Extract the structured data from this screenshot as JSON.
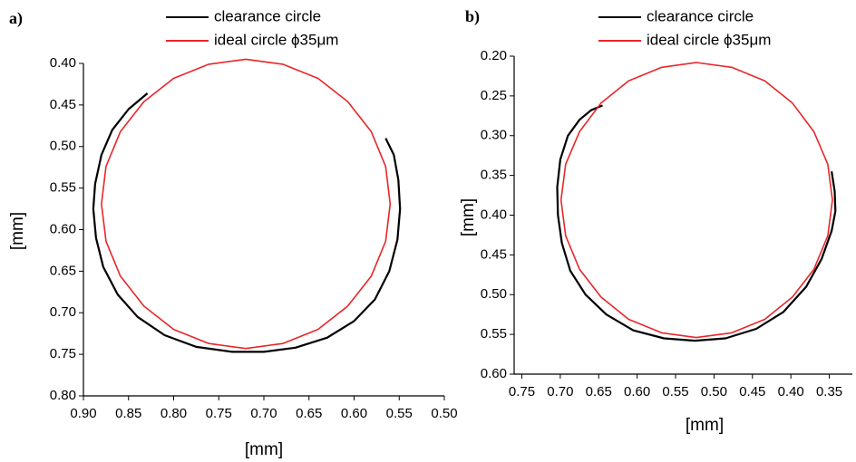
{
  "chart_data": [
    {
      "type": "line",
      "title": "a)",
      "xlabel": "[mm]",
      "ylabel": "[mm]",
      "xlim": [
        0.9,
        0.5
      ],
      "ylim": [
        0.4,
        0.8
      ],
      "xticks": [
        {
          "value": 0.9,
          "label": "0.90"
        },
        0.85,
        {
          "value": 0.8,
          "label": "0.80"
        },
        0.75,
        {
          "value": 0.7,
          "label": "0.70"
        },
        0.65,
        {
          "value": 0.6,
          "label": "0.60"
        },
        0.55,
        {
          "value": 0.5,
          "label": "0.50"
        }
      ],
      "yticks": [
        {
          "value": 0.4,
          "label": "0.40"
        },
        0.45,
        {
          "value": 0.5,
          "label": "0.50"
        },
        0.55,
        {
          "value": 0.6,
          "label": "0.60"
        },
        0.65,
        {
          "value": 0.7,
          "label": "0.70"
        },
        0.75,
        {
          "value": 0.8,
          "label": "0.80"
        }
      ],
      "series": [
        {
          "name": "clearance circle",
          "color": "#000000",
          "x": [
            0.829,
            0.85,
            0.868,
            0.88,
            0.887,
            0.889,
            0.886,
            0.878,
            0.862,
            0.84,
            0.81,
            0.775,
            0.735,
            0.7,
            0.665,
            0.63,
            0.6,
            0.577,
            0.561,
            0.552,
            0.549,
            0.551,
            0.556,
            0.565
          ],
          "values": [
            0.436,
            0.455,
            0.48,
            0.51,
            0.545,
            0.575,
            0.61,
            0.645,
            0.678,
            0.705,
            0.727,
            0.741,
            0.747,
            0.747,
            0.742,
            0.73,
            0.71,
            0.684,
            0.65,
            0.612,
            0.575,
            0.54,
            0.51,
            0.49
          ]
        },
        {
          "name": "ideal circle ϕ35μm",
          "color": "#e8262a",
          "x": [
            0.88,
            0.875,
            0.859,
            0.833,
            0.8,
            0.761,
            0.72,
            0.679,
            0.64,
            0.607,
            0.581,
            0.565,
            0.56,
            0.565,
            0.581,
            0.607,
            0.64,
            0.679,
            0.72,
            0.761,
            0.8,
            0.833,
            0.859,
            0.875,
            0.88
          ],
          "values": [
            0.569,
            0.614,
            0.656,
            0.692,
            0.72,
            0.737,
            0.743,
            0.737,
            0.72,
            0.692,
            0.656,
            0.614,
            0.569,
            0.524,
            0.482,
            0.446,
            0.418,
            0.401,
            0.395,
            0.401,
            0.418,
            0.446,
            0.482,
            0.524,
            0.569
          ]
        }
      ]
    },
    {
      "type": "line",
      "title": "b)",
      "xlabel": "[mm]",
      "ylabel": "[mm]",
      "xlim": [
        0.76,
        0.32
      ],
      "ylim": [
        0.2,
        0.6
      ],
      "xticks": [
        0.75,
        {
          "value": 0.7,
          "label": "0.70"
        },
        0.65,
        {
          "value": 0.6,
          "label": "0.60"
        },
        0.55,
        {
          "value": 0.5,
          "label": "0.50"
        },
        0.45,
        {
          "value": 0.4,
          "label": "0.40"
        },
        0.35
      ],
      "yticks": [
        {
          "value": 0.2,
          "label": "0.20"
        },
        0.25,
        {
          "value": 0.3,
          "label": "0.30"
        },
        0.35,
        {
          "value": 0.4,
          "label": "0.40"
        },
        0.45,
        {
          "value": 0.5,
          "label": "0.50"
        },
        0.55,
        {
          "value": 0.6,
          "label": "0.60"
        }
      ],
      "series": [
        {
          "name": "clearance circle",
          "color": "#000000",
          "x": [
            0.645,
            0.66,
            0.675,
            0.69,
            0.7,
            0.704,
            0.703,
            0.698,
            0.687,
            0.667,
            0.64,
            0.605,
            0.565,
            0.525,
            0.485,
            0.445,
            0.41,
            0.38,
            0.36,
            0.347,
            0.342,
            0.343,
            0.347
          ],
          "values": [
            0.262,
            0.268,
            0.28,
            0.3,
            0.33,
            0.365,
            0.4,
            0.435,
            0.47,
            0.5,
            0.525,
            0.545,
            0.555,
            0.558,
            0.555,
            0.543,
            0.522,
            0.49,
            0.455,
            0.42,
            0.395,
            0.37,
            0.345
          ]
        },
        {
          "name": "ideal circle ϕ35μm",
          "color": "#e8262a",
          "x": [
            0.699,
            0.693,
            0.675,
            0.647,
            0.611,
            0.568,
            0.523,
            0.477,
            0.434,
            0.398,
            0.37,
            0.352,
            0.346,
            0.352,
            0.37,
            0.398,
            0.434,
            0.477,
            0.523,
            0.568,
            0.611,
            0.647,
            0.675,
            0.693,
            0.699
          ],
          "values": [
            0.381,
            0.426,
            0.468,
            0.503,
            0.531,
            0.548,
            0.554,
            0.548,
            0.531,
            0.503,
            0.468,
            0.426,
            0.381,
            0.336,
            0.295,
            0.259,
            0.231,
            0.214,
            0.208,
            0.214,
            0.231,
            0.259,
            0.295,
            0.336,
            0.381
          ]
        }
      ]
    }
  ]
}
